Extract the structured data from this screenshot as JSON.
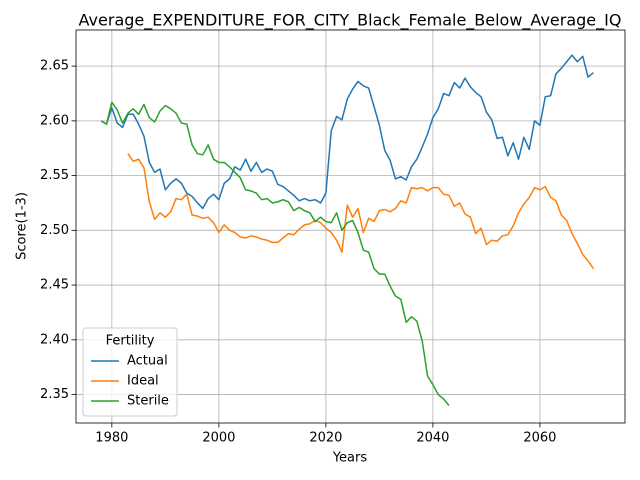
{
  "chart_data": {
    "type": "line",
    "title": "Average_EXPENDITURE_FOR_CITY_Black_Female_Below_Average_IQ",
    "xlabel": "Years",
    "ylabel": "Score(1-3)",
    "legend_title": "Fertility",
    "legend": "lower left",
    "grid": true,
    "xlim": [
      1973.3,
      2075.9
    ],
    "xticks": [
      1980,
      2000,
      2020,
      2040,
      2060
    ],
    "ylim": [
      2.324,
      2.683
    ],
    "yticks": [
      2.35,
      {
        "value": 2.4,
        "label": "2.40"
      },
      2.45,
      {
        "value": 2.5,
        "label": "2.50"
      },
      2.55,
      {
        "value": 2.6,
        "label": "2.60"
      },
      2.65
    ],
    "x": [
      1978,
      1979,
      1980,
      1981,
      1982,
      1983,
      1984,
      1985,
      1986,
      1987,
      1988,
      1989,
      1990,
      1991,
      1992,
      1993,
      1994,
      1995,
      1996,
      1997,
      1998,
      1999,
      2000,
      2001,
      2002,
      2003,
      2004,
      2005,
      2006,
      2007,
      2008,
      2009,
      2010,
      2011,
      2012,
      2013,
      2014,
      2015,
      2016,
      2017,
      2018,
      2019,
      2020,
      2021,
      2022,
      2023,
      2024,
      2025,
      2026,
      2027,
      2028,
      2029,
      2030,
      2031,
      2032,
      2033,
      2034,
      2035,
      2036,
      2037,
      2038,
      2039,
      2040,
      2041,
      2042,
      2043,
      2044,
      2045,
      2046,
      2047,
      2048,
      2049,
      2050,
      2051,
      2052,
      2053,
      2054,
      2055,
      2056,
      2057,
      2058,
      2059,
      2060,
      2061,
      2062,
      2063,
      2064,
      2065,
      2066,
      2067,
      2068,
      2069,
      2070
    ],
    "series": [
      {
        "name": "Actual",
        "color": "#1f77b4",
        "values": [
          2.6,
          2.597,
          2.612,
          2.598,
          2.594,
          2.606,
          2.606,
          2.597,
          2.586,
          2.562,
          2.553,
          2.556,
          2.537,
          2.543,
          2.547,
          2.543,
          2.534,
          2.531,
          2.525,
          2.52,
          2.529,
          2.533,
          2.528,
          2.543,
          2.547,
          2.558,
          2.555,
          2.565,
          2.554,
          2.562,
          2.553,
          2.556,
          2.554,
          2.542,
          2.54,
          2.536,
          2.532,
          2.527,
          2.529,
          2.527,
          2.528,
          2.525,
          2.534,
          2.591,
          2.604,
          2.601,
          2.62,
          2.629,
          2.636,
          2.632,
          2.63,
          2.613,
          2.596,
          2.573,
          2.564,
          2.547,
          2.549,
          2.546,
          2.558,
          2.565,
          2.576,
          2.588,
          2.603,
          2.611,
          2.625,
          2.623,
          2.635,
          2.63,
          2.639,
          2.631,
          2.626,
          2.622,
          2.608,
          2.601,
          2.584,
          2.585,
          2.568,
          2.58,
          2.565,
          2.585,
          2.574,
          2.6,
          2.596,
          2.622,
          2.623,
          2.643,
          2.648,
          2.654,
          2.66,
          2.654,
          2.659,
          2.64,
          2.644
        ]
      },
      {
        "name": "Ideal",
        "color": "#ff7f0e",
        "values": [
          null,
          null,
          null,
          null,
          null,
          2.57,
          2.563,
          2.565,
          2.557,
          2.526,
          2.51,
          2.516,
          2.512,
          2.517,
          2.529,
          2.528,
          2.533,
          2.514,
          2.513,
          2.511,
          2.512,
          2.507,
          2.498,
          2.505,
          2.5,
          2.498,
          2.494,
          2.493,
          2.495,
          2.494,
          2.492,
          2.491,
          2.489,
          2.489,
          2.493,
          2.497,
          2.496,
          2.501,
          2.505,
          2.506,
          2.509,
          2.507,
          2.502,
          2.498,
          2.491,
          2.48,
          2.523,
          2.512,
          2.52,
          2.498,
          2.511,
          2.508,
          2.518,
          2.519,
          2.517,
          2.52,
          2.527,
          2.525,
          2.539,
          2.538,
          2.539,
          2.536,
          2.539,
          2.539,
          2.533,
          2.532,
          2.522,
          2.525,
          2.515,
          2.512,
          2.497,
          2.502,
          2.487,
          2.491,
          2.49,
          2.495,
          2.496,
          2.504,
          2.516,
          2.524,
          2.53,
          2.539,
          2.537,
          2.54,
          2.53,
          2.527,
          2.514,
          2.509,
          2.497,
          2.488,
          2.478,
          2.472,
          2.465
        ]
      },
      {
        "name": "Sterile",
        "color": "#2ca02c",
        "values": [
          2.6,
          2.597,
          2.617,
          2.61,
          2.598,
          2.607,
          2.611,
          2.606,
          2.615,
          2.603,
          2.599,
          2.609,
          2.614,
          2.611,
          2.607,
          2.598,
          2.597,
          2.578,
          2.57,
          2.569,
          2.578,
          2.565,
          2.562,
          2.562,
          2.558,
          2.553,
          2.548,
          2.537,
          2.536,
          2.534,
          2.528,
          2.529,
          2.525,
          2.526,
          2.528,
          2.526,
          2.518,
          2.521,
          2.518,
          2.516,
          2.508,
          2.512,
          2.508,
          2.507,
          2.516,
          2.5,
          2.507,
          2.509,
          2.498,
          2.482,
          2.48,
          2.465,
          2.46,
          2.46,
          2.449,
          2.44,
          2.437,
          2.416,
          2.421,
          2.417,
          2.399,
          2.367,
          2.359,
          2.35,
          2.346,
          2.34,
          null,
          null,
          null,
          null,
          null,
          null,
          null,
          null,
          null,
          null,
          null,
          null,
          null,
          null,
          null,
          null,
          null,
          null,
          null,
          null,
          null,
          null,
          null,
          null,
          null,
          null,
          null
        ]
      }
    ]
  }
}
